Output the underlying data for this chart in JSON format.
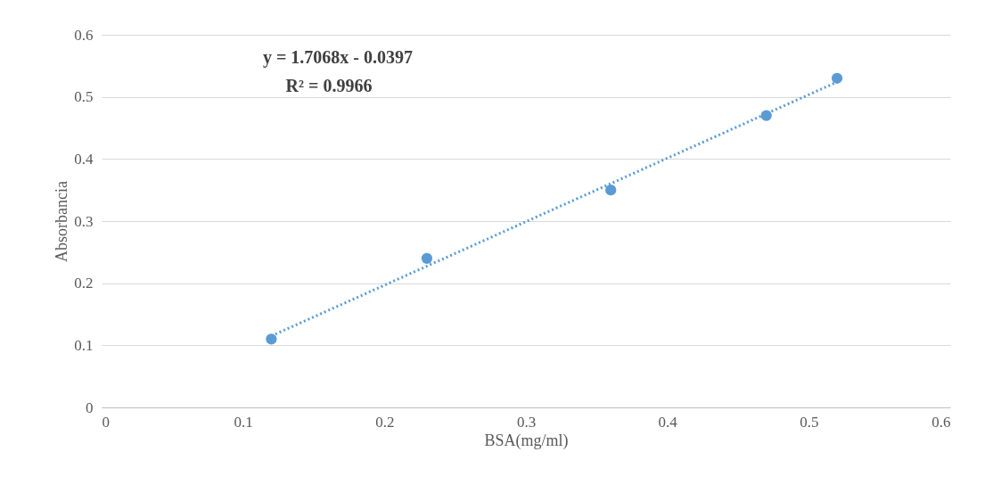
{
  "chart_data": {
    "type": "scatter",
    "xlabel": "BSA(mg/ml)",
    "ylabel": "Absorbancia",
    "x": [
      0.12,
      0.23,
      0.36,
      0.47,
      0.52
    ],
    "series": [
      {
        "color": "#5b9bd5",
        "values": [
          0.11,
          0.24,
          0.35,
          0.47,
          0.53
        ],
        "marker": "circle"
      },
      {
        "type": "line",
        "color": "#5b9bd5",
        "x": [
          0.12,
          0.52
        ],
        "values": [
          0.115,
          0.524
        ],
        "line_style": "dotted",
        "marker": "none"
      }
    ],
    "xlim": [
      0,
      0.6
    ],
    "xticks": [
      0,
      0.1,
      0.2,
      0.3,
      0.4,
      0.5,
      0.6
    ],
    "ylim": [
      0,
      0.6
    ],
    "yticks": [
      0,
      0.1,
      0.2,
      0.3,
      0.4,
      0.5,
      0.6
    ],
    "grid": "y",
    "annotations": [
      "y = 1.7068x - 0.0397",
      "R² = 0.9966"
    ]
  }
}
